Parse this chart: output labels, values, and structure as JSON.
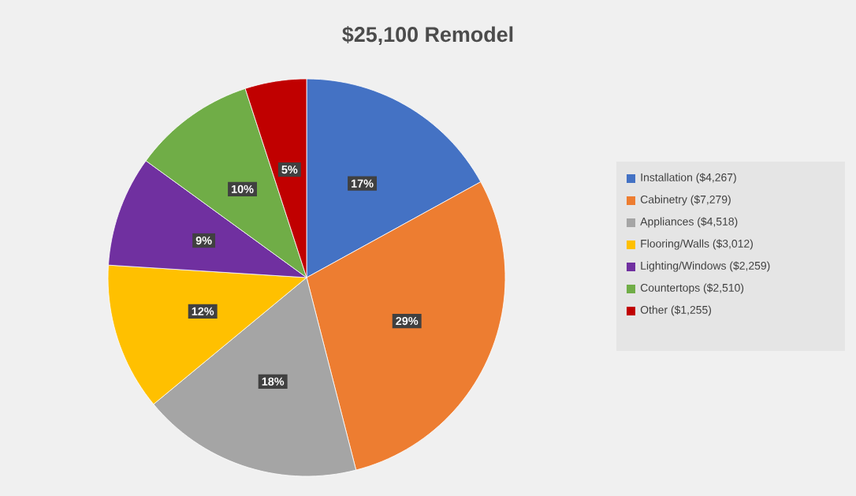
{
  "chart_data": {
    "type": "pie",
    "title": "$25,100 Remodel",
    "categories": [
      "Installation ($4,267)",
      "Cabinetry ($7,279)",
      "Appliances ($4,518)",
      "Flooring/Walls ($3,012)",
      "Lighting/Windows ($2,259)",
      "Countertops ($2,510)",
      "Other ($1,255)"
    ],
    "values": [
      17,
      29,
      18,
      12,
      9,
      10,
      5
    ],
    "colors": [
      "#4472c4",
      "#ed7d31",
      "#a5a5a5",
      "#ffc000",
      "#7030a0",
      "#70ad47",
      "#c00000"
    ],
    "value_labels": [
      "17%",
      "29%",
      "18%",
      "12%",
      "9%",
      "10%",
      "5%"
    ],
    "legend": "right"
  }
}
